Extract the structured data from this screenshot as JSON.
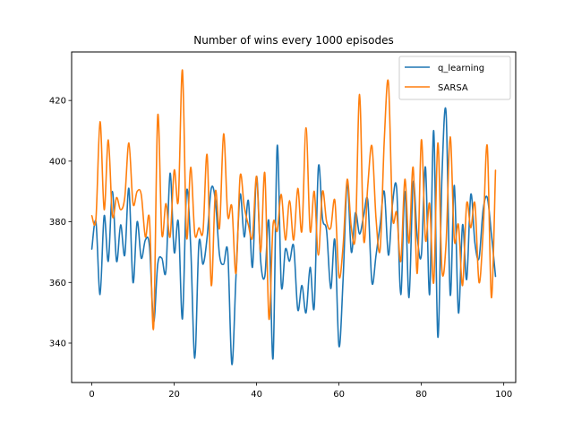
{
  "chart_data": {
    "type": "line",
    "title": "Number of wins every 1000 episodes",
    "xlabel": "",
    "ylabel": "",
    "xlim": [
      -4.9,
      102.9
    ],
    "ylim": [
      327,
      436
    ],
    "xticks": [
      0,
      20,
      40,
      60,
      80,
      100
    ],
    "yticks": [
      340,
      360,
      380,
      400,
      420
    ],
    "grid": false,
    "legend_position": "top-right",
    "x": [
      0,
      1,
      2,
      3,
      4,
      5,
      6,
      7,
      8,
      9,
      10,
      11,
      12,
      13,
      14,
      15,
      16,
      17,
      18,
      19,
      20,
      21,
      22,
      23,
      24,
      25,
      26,
      27,
      28,
      29,
      30,
      31,
      32,
      33,
      34,
      35,
      36,
      37,
      38,
      39,
      40,
      41,
      42,
      43,
      44,
      45,
      46,
      47,
      48,
      49,
      50,
      51,
      52,
      53,
      54,
      55,
      56,
      57,
      58,
      59,
      60,
      61,
      62,
      63,
      64,
      65,
      66,
      67,
      68,
      69,
      70,
      71,
      72,
      73,
      74,
      75,
      76,
      77,
      78,
      79,
      80,
      81,
      82,
      83,
      84,
      85,
      86,
      87,
      88,
      89,
      90,
      91,
      92,
      93,
      94,
      95,
      96,
      97,
      98
    ],
    "series": [
      {
        "name": "q_learning",
        "color": "#1f77b4",
        "values": [
          371,
          380,
          356,
          382,
          367,
          390,
          367,
          379,
          369,
          391,
          360,
          380,
          368,
          374,
          372,
          347,
          366,
          368,
          364,
          396,
          370,
          380,
          348,
          390,
          372,
          335,
          373,
          366,
          375,
          391,
          387,
          369,
          366,
          370,
          333,
          362,
          389,
          375,
          387,
          365,
          395,
          367,
          362,
          380,
          335,
          405,
          359,
          371,
          367,
          372,
          351,
          359,
          350,
          365,
          352,
          398,
          381,
          377,
          358,
          374,
          339,
          361,
          393,
          370,
          383,
          376,
          382,
          387,
          360,
          369,
          379,
          390,
          369,
          386,
          391,
          356,
          390,
          355,
          393,
          375,
          369,
          398,
          356,
          410,
          342,
          395,
          416,
          356,
          392,
          350,
          379,
          361,
          389,
          373,
          368,
          384,
          388,
          376,
          362
        ]
      },
      {
        "name": "SARSA",
        "color": "#ff7f0e",
        "values": [
          382,
          381,
          413,
          384,
          407,
          382,
          388,
          384,
          388,
          406,
          386,
          390,
          389,
          375,
          381,
          345,
          415,
          376,
          386,
          375,
          397,
          387,
          430,
          375,
          398,
          376,
          378,
          377,
          402,
          359,
          390,
          378,
          409,
          382,
          385,
          363,
          395,
          385,
          379,
          375,
          395,
          370,
          396,
          348,
          379,
          377,
          389,
          374,
          387,
          374,
          391,
          377,
          411,
          377,
          390,
          369,
          390,
          380,
          378,
          387,
          362,
          372,
          394,
          378,
          376,
          422,
          374,
          392,
          405,
          381,
          371,
          407,
          426,
          382,
          383,
          367,
          394,
          373,
          398,
          363,
          407,
          374,
          386,
          360,
          406,
          364,
          373,
          408,
          374,
          379,
          359,
          386,
          378,
          386,
          360,
          377,
          405,
          355,
          397
        ]
      }
    ]
  }
}
